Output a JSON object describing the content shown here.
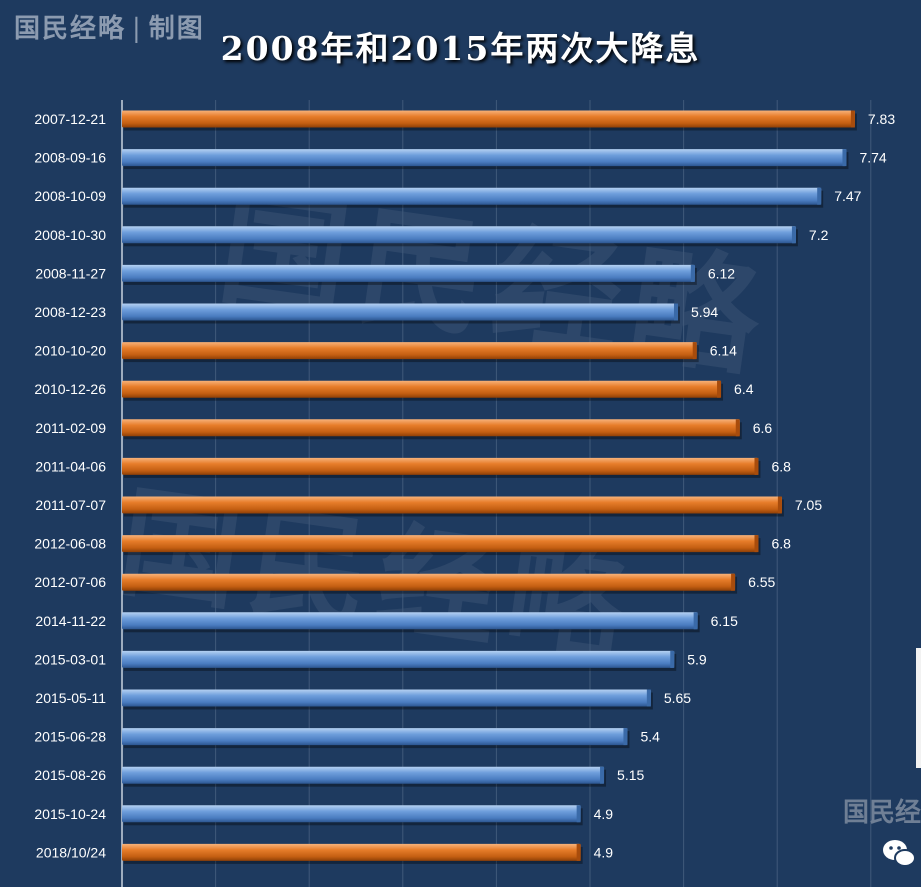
{
  "header": {
    "brand": "国民经略",
    "brand_suffix": "制图",
    "watermark_text": "国民经略",
    "corner_brand": "国民经"
  },
  "colors": {
    "background": "#1e3a5f",
    "bar_orange": "#e07420",
    "bar_blue": "#5b8fd0",
    "label_text": "#ffffff",
    "grid": "#40597a"
  },
  "icons": {
    "wechat": "wechat-icon"
  },
  "chart_data": {
    "type": "bar",
    "orientation": "horizontal",
    "title": "2008年和2015年两次大降息",
    "xlabel": "",
    "ylabel": "",
    "xlim": [
      0,
      8
    ],
    "grid": true,
    "legend": "none",
    "categories": [
      "2007-12-21",
      "2008-09-16",
      "2008-10-09",
      "2008-10-30",
      "2008-11-27",
      "2008-12-23",
      "2010-10-20",
      "2010-12-26",
      "2011-02-09",
      "2011-04-06",
      "2011-07-07",
      "2012-06-08",
      "2012-07-06",
      "2014-11-22",
      "2015-03-01",
      "2015-05-11",
      "2015-06-28",
      "2015-08-26",
      "2015-10-24",
      "2018/10/24"
    ],
    "values": [
      7.83,
      7.74,
      7.47,
      7.2,
      6.12,
      5.94,
      6.14,
      6.4,
      6.6,
      6.8,
      7.05,
      6.8,
      6.55,
      6.15,
      5.9,
      5.65,
      5.4,
      5.15,
      4.9,
      4.9
    ],
    "value_labels": [
      "7.83",
      "7.74",
      "7.47",
      "7.2",
      "6.12",
      "5.94",
      "6.14",
      "6.4",
      "6.6",
      "6.8",
      "7.05",
      "6.8",
      "6.55",
      "6.15",
      "5.9",
      "5.65",
      "5.4",
      "5.15",
      "4.9",
      "4.9"
    ],
    "bar_colors": [
      "orange",
      "blue",
      "blue",
      "blue",
      "blue",
      "blue",
      "orange",
      "orange",
      "orange",
      "orange",
      "orange",
      "orange",
      "orange",
      "blue",
      "blue",
      "blue",
      "blue",
      "blue",
      "blue",
      "orange"
    ]
  }
}
